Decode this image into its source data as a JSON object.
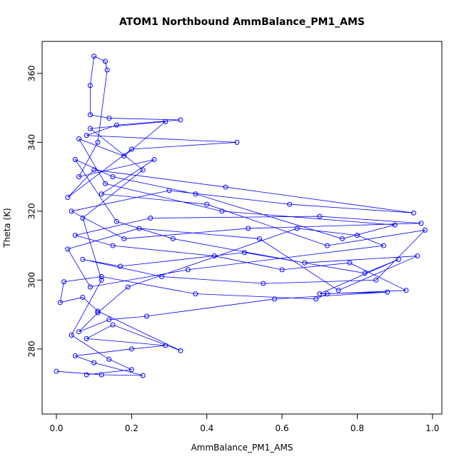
{
  "chart_data": {
    "type": "line",
    "markers": true,
    "title": "ATOM1 Northbound AmmBalance_PM1_AMS",
    "x_label": "AmmBalance_PM1_AMS",
    "y_label": "Theta (K)",
    "color": "#0000ff",
    "x": [
      0.0,
      0.12,
      0.23,
      0.1,
      0.05,
      0.2,
      0.29,
      0.08,
      0.15,
      0.33,
      0.11,
      0.07,
      0.01,
      0.02,
      0.12,
      0.37,
      0.69,
      0.72,
      0.93,
      0.78,
      0.6,
      0.42,
      0.15,
      0.05,
      0.25,
      0.7,
      0.97,
      0.51,
      0.18,
      0.04,
      0.3,
      0.62,
      0.95,
      0.45,
      0.1,
      0.03,
      0.2,
      0.48,
      0.08,
      0.16,
      0.33,
      0.14,
      0.09,
      0.09,
      0.1,
      0.13,
      0.135,
      0.11,
      0.06,
      0.26,
      0.12,
      0.4,
      0.72,
      0.98,
      0.85,
      0.55,
      0.28,
      0.07,
      0.17,
      0.5,
      0.82,
      0.91,
      0.7,
      0.88,
      0.58,
      0.24,
      0.14,
      0.06,
      0.11,
      0.19,
      0.64,
      0.8,
      0.87,
      0.35,
      0.09,
      0.03,
      0.22,
      0.54,
      0.75,
      0.96,
      0.66,
      0.31,
      0.16,
      0.05,
      0.15,
      0.37,
      0.76,
      0.9,
      0.44,
      0.13,
      0.06,
      0.18,
      0.29,
      0.09,
      0.23,
      0.07,
      0.12,
      0.04,
      0.14,
      0.2,
      0.08
    ],
    "values": [
      273.5,
      272.5,
      272.3,
      276,
      278,
      280,
      281,
      283,
      287,
      279.5,
      291,
      295,
      293.5,
      299.5,
      301,
      296,
      294.5,
      296,
      297,
      305,
      303,
      307,
      310,
      313,
      318,
      318.5,
      316.5,
      315,
      312,
      320,
      326,
      322,
      319.5,
      327,
      332,
      324,
      338,
      340,
      342,
      345,
      346.5,
      347,
      348,
      356.5,
      365,
      363.5,
      361,
      340,
      330,
      335,
      325,
      322,
      310,
      314.5,
      300,
      299,
      301,
      306,
      304,
      308,
      302,
      306,
      296,
      296.5,
      294.5,
      289.5,
      288.5,
      285,
      290.5,
      298,
      315,
      313,
      310,
      303,
      298,
      309,
      315,
      312,
      297,
      307,
      305,
      312,
      317,
      335,
      330,
      325,
      312,
      316,
      320,
      328,
      341,
      336,
      346,
      344,
      332,
      318,
      300,
      284,
      277,
      274,
      272.5
    ],
    "xlim": [
      -0.038,
      1.025
    ],
    "ylim": [
      261.1,
      369.3
    ],
    "xticks": [
      {
        "value": 0,
        "label": "0.0"
      },
      0.2,
      0.4,
      0.6,
      0.8,
      {
        "value": 1,
        "label": "1.0"
      }
    ],
    "yticks": [
      280,
      300,
      320,
      340,
      360
    ]
  }
}
